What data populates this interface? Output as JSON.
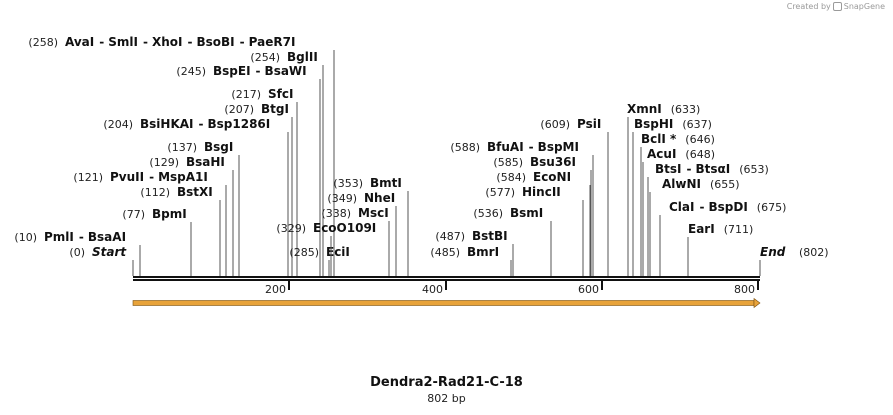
{
  "credit": {
    "text": "Created by",
    "brand": "SnapGene"
  },
  "map": {
    "title": "Dendra2-Rad21-C-18",
    "length_label": "802 bp",
    "length_bp": 802,
    "ticks": [
      200,
      400,
      600,
      800
    ],
    "start": {
      "label": "Start",
      "pos_label": "(0)",
      "bp": 0
    },
    "end": {
      "label": "End",
      "pos_label": "(802)",
      "bp": 802
    },
    "sites": [
      {
        "pos_label": "(10)",
        "enzymes": [
          "PmlI",
          "BsaAI"
        ],
        "cuts": [
          10
        ]
      },
      {
        "pos_label": "(77)",
        "enzymes": [
          "BpmI"
        ],
        "cuts": [
          77
        ]
      },
      {
        "pos_label": "(112)",
        "enzymes": [
          "BstXI"
        ],
        "cuts": [
          112
        ]
      },
      {
        "pos_label": "(121)",
        "enzymes": [
          "PvuII",
          "MspA1I"
        ],
        "cuts": [
          121
        ]
      },
      {
        "pos_label": "(129)",
        "enzymes": [
          "BsaHI"
        ],
        "cuts": [
          129
        ]
      },
      {
        "pos_label": "(137)",
        "enzymes": [
          "BsgI"
        ],
        "cuts": [
          137
        ]
      },
      {
        "pos_label": "(204)",
        "enzymes": [
          "BsiHKAI",
          "Bsp1286I"
        ],
        "cuts": [
          204
        ]
      },
      {
        "pos_label": "(207)",
        "enzymes": [
          "BtgI"
        ],
        "cuts": [
          207
        ]
      },
      {
        "pos_label": "(217)",
        "enzymes": [
          "SfcI"
        ],
        "cuts": [
          217
        ]
      },
      {
        "pos_label": "(245)",
        "enzymes": [
          "BspEI",
          "BsaWI"
        ],
        "cuts": [
          245
        ]
      },
      {
        "pos_label": "(254)",
        "enzymes": [
          "BglII"
        ],
        "cuts": [
          254
        ]
      },
      {
        "pos_label": "(258)",
        "enzymes": [
          "AvaI",
          "SmlI",
          "XhoI",
          "BsoBI",
          "PaeR7I"
        ],
        "cuts": [
          258
        ]
      },
      {
        "pos_label": "(285)",
        "enzymes": [
          "EciI"
        ],
        "cuts": [
          285
        ]
      },
      {
        "pos_label": "(329)",
        "enzymes": [
          "EcoO109I"
        ],
        "cuts": [
          329
        ]
      },
      {
        "pos_label": "(338)",
        "enzymes": [
          "MscI"
        ],
        "cuts": [
          338
        ]
      },
      {
        "pos_label": "(349)",
        "enzymes": [
          "NheI"
        ],
        "cuts": [
          349
        ]
      },
      {
        "pos_label": "(353)",
        "enzymes": [
          "BmtI"
        ],
        "cuts": [
          353
        ]
      },
      {
        "pos_label": "(485)",
        "enzymes": [
          "BmrI"
        ],
        "cuts": [
          485
        ]
      },
      {
        "pos_label": "(487)",
        "enzymes": [
          "BstBI"
        ],
        "cuts": [
          487
        ]
      },
      {
        "pos_label": "(536)",
        "enzymes": [
          "BsmI"
        ],
        "cuts": [
          536
        ]
      },
      {
        "pos_label": "(577)",
        "enzymes": [
          "HincII"
        ],
        "cuts": [
          577
        ]
      },
      {
        "pos_label": "(584)",
        "enzymes": [
          "EcoNI"
        ],
        "cuts": [
          584
        ]
      },
      {
        "pos_label": "(585)",
        "enzymes": [
          "Bsu36I"
        ],
        "cuts": [
          585
        ]
      },
      {
        "pos_label": "(588)",
        "enzymes": [
          "BfuAI",
          "BspMI"
        ],
        "cuts": [
          588
        ]
      },
      {
        "pos_label": "(609)",
        "enzymes": [
          "PsiI"
        ],
        "cuts": [
          609
        ]
      },
      {
        "pos_label": "(633)",
        "enzymes": [
          "XmnI"
        ],
        "cuts": [
          633
        ]
      },
      {
        "pos_label": "(637)",
        "enzymes": [
          "BspHI"
        ],
        "cuts": [
          637
        ]
      },
      {
        "pos_label": "(646)",
        "enzymes": [
          "BclI *"
        ],
        "cuts": [
          646
        ]
      },
      {
        "pos_label": "(648)",
        "enzymes": [
          "AcuI"
        ],
        "cuts": [
          648
        ]
      },
      {
        "pos_label": "(653)",
        "enzymes": [
          "BtsI",
          "BtsαI"
        ],
        "cuts": [
          653
        ]
      },
      {
        "pos_label": "(655)",
        "enzymes": [
          "AlwNI"
        ],
        "cuts": [
          655
        ]
      },
      {
        "pos_label": "(675)",
        "enzymes": [
          "ClaI",
          "BspDI"
        ],
        "cuts": [
          675
        ]
      },
      {
        "pos_label": "(711)",
        "enzymes": [
          "EarI"
        ],
        "cuts": [
          711
        ]
      }
    ]
  },
  "colors": {
    "backbone": "#111111",
    "arrow": "#e8a33a",
    "arrow_edge": "#7a5010",
    "leader": "#555555",
    "credit": "#9a9a9a"
  }
}
